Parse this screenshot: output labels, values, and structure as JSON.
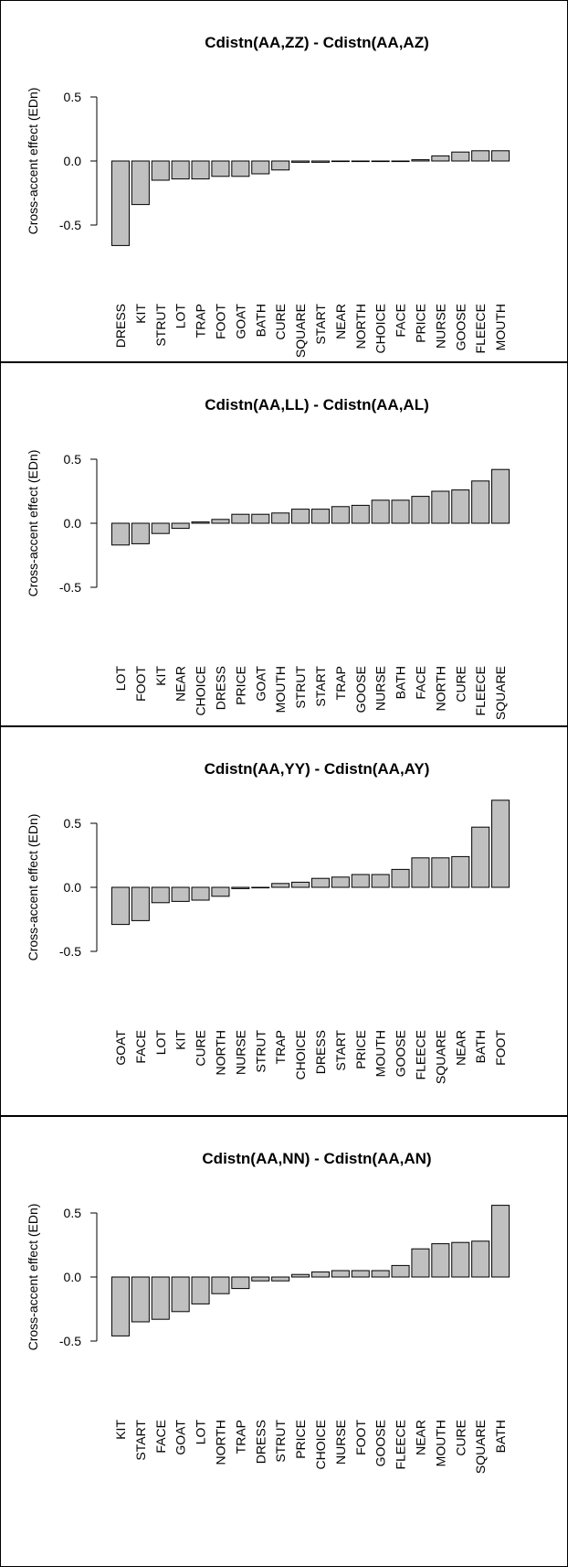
{
  "chart_data": [
    {
      "type": "bar",
      "title": "Cdistn(AA,ZZ) - Cdistn(AA,AZ)",
      "xlabel": "",
      "ylabel": "Cross-accent effect (EDn)",
      "yticks": [
        "-0.5",
        "0.0",
        "0.5"
      ],
      "ylim": [
        -0.6,
        0.65
      ],
      "grid": false,
      "bar_color": "#c0c0c0",
      "categories": [
        "DRESS",
        "KIT",
        "STRUT",
        "LOT",
        "TRAP",
        "FOOT",
        "GOAT",
        "BATH",
        "CURE",
        "SQUARE",
        "START",
        "NEAR",
        "NORTH",
        "CHOICE",
        "FACE",
        "PRICE",
        "NURSE",
        "GOOSE",
        "FLEECE",
        "MOUTH"
      ],
      "values": [
        -0.66,
        -0.34,
        -0.15,
        -0.14,
        -0.14,
        -0.12,
        -0.12,
        -0.1,
        -0.07,
        -0.01,
        -0.01,
        0.0,
        0.0,
        0.0,
        0.0,
        0.01,
        0.04,
        0.07,
        0.08,
        0.08
      ]
    },
    {
      "type": "bar",
      "title": "Cdistn(AA,LL) - Cdistn(AA,AL)",
      "xlabel": "",
      "ylabel": "Cross-accent effect (EDn)",
      "yticks": [
        "-0.5",
        "0.0",
        "0.5"
      ],
      "ylim": [
        -0.6,
        0.65
      ],
      "grid": false,
      "bar_color": "#c0c0c0",
      "categories": [
        "LOT",
        "FOOT",
        "KIT",
        "NEAR",
        "CHOICE",
        "DRESS",
        "PRICE",
        "GOAT",
        "MOUTH",
        "STRUT",
        "START",
        "TRAP",
        "GOOSE",
        "NURSE",
        "BATH",
        "FACE",
        "NORTH",
        "CURE",
        "FLEECE",
        "SQUARE"
      ],
      "values": [
        -0.17,
        -0.16,
        -0.08,
        -0.04,
        0.01,
        0.03,
        0.07,
        0.07,
        0.08,
        0.11,
        0.11,
        0.13,
        0.14,
        0.18,
        0.18,
        0.21,
        0.25,
        0.26,
        0.33,
        0.42
      ]
    },
    {
      "type": "bar",
      "title": "Cdistn(AA,YY) - Cdistn(AA,AY)",
      "xlabel": "",
      "ylabel": "Cross-accent effect (EDn)",
      "yticks": [
        "-0.5",
        "0.0",
        "0.5"
      ],
      "ylim": [
        -0.6,
        0.65
      ],
      "grid": false,
      "bar_color": "#c0c0c0",
      "categories": [
        "GOAT",
        "FACE",
        "LOT",
        "KIT",
        "CURE",
        "NORTH",
        "NURSE",
        "STRUT",
        "TRAP",
        "CHOICE",
        "DRESS",
        "START",
        "PRICE",
        "MOUTH",
        "GOOSE",
        "FLEECE",
        "SQUARE",
        "NEAR",
        "BATH",
        "FOOT"
      ],
      "values": [
        -0.29,
        -0.26,
        -0.12,
        -0.11,
        -0.1,
        -0.07,
        -0.01,
        0.0,
        0.03,
        0.04,
        0.07,
        0.08,
        0.1,
        0.1,
        0.14,
        0.23,
        0.23,
        0.24,
        0.47,
        0.68
      ]
    },
    {
      "type": "bar",
      "title": "Cdistn(AA,NN) - Cdistn(AA,AN)",
      "xlabel": "",
      "ylabel": "Cross-accent effect (EDn)",
      "yticks": [
        "-0.5",
        "0.0",
        "0.5"
      ],
      "ylim": [
        -0.6,
        0.65
      ],
      "grid": false,
      "bar_color": "#c0c0c0",
      "categories": [
        "KIT",
        "START",
        "FACE",
        "GOAT",
        "LOT",
        "NORTH",
        "TRAP",
        "DRESS",
        "STRUT",
        "PRICE",
        "CHOICE",
        "NURSE",
        "FOOT",
        "GOOSE",
        "FLEECE",
        "NEAR",
        "MOUTH",
        "CURE",
        "SQUARE",
        "BATH"
      ],
      "values": [
        -0.46,
        -0.35,
        -0.33,
        -0.27,
        -0.21,
        -0.13,
        -0.09,
        -0.03,
        -0.03,
        0.02,
        0.04,
        0.05,
        0.05,
        0.05,
        0.09,
        0.22,
        0.26,
        0.27,
        0.28,
        0.56
      ]
    }
  ]
}
